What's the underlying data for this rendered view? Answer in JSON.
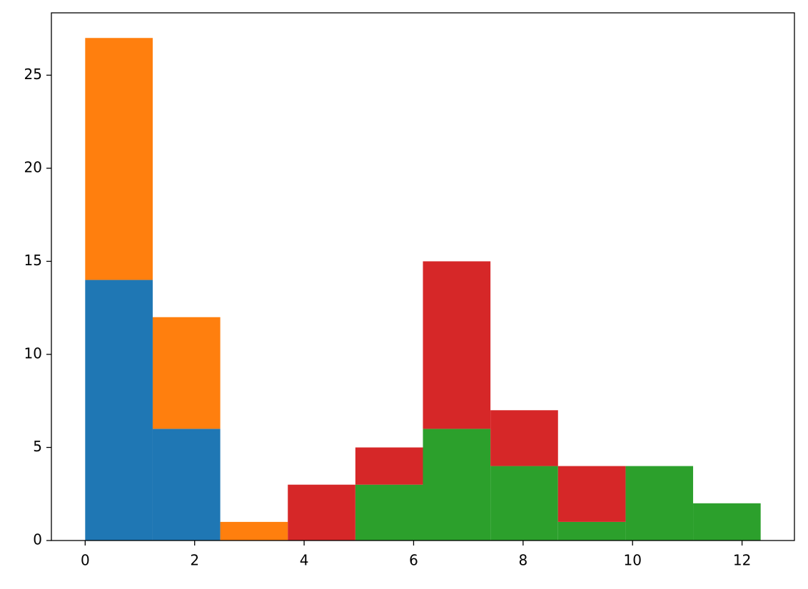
{
  "chart_data": {
    "type": "histogram",
    "stacked": true,
    "bins": [
      0,
      1.234,
      2.468,
      3.702,
      4.936,
      6.17,
      7.404,
      8.638,
      9.872,
      11.106,
      12.34
    ],
    "series": [
      {
        "color": "#1f77b4",
        "values": [
          14,
          6,
          0,
          0,
          0,
          0,
          0,
          0,
          0,
          0
        ]
      },
      {
        "color": "#ff7f0e",
        "values": [
          13,
          6,
          1,
          0,
          0,
          0,
          0,
          0,
          0,
          0
        ]
      },
      {
        "color": "#2ca02c",
        "values": [
          0,
          0,
          0,
          0,
          3,
          6,
          4,
          1,
          4,
          2
        ]
      },
      {
        "color": "#d62728",
        "values": [
          0,
          0,
          0,
          3,
          2,
          9,
          3,
          3,
          0,
          0
        ]
      }
    ],
    "xlim": [
      -0.617,
      12.957
    ],
    "ylim": [
      0,
      28.35
    ],
    "xticks": [
      0,
      2,
      4,
      6,
      8,
      10,
      12
    ],
    "yticks": [
      0,
      5,
      10,
      15,
      20,
      25
    ]
  }
}
